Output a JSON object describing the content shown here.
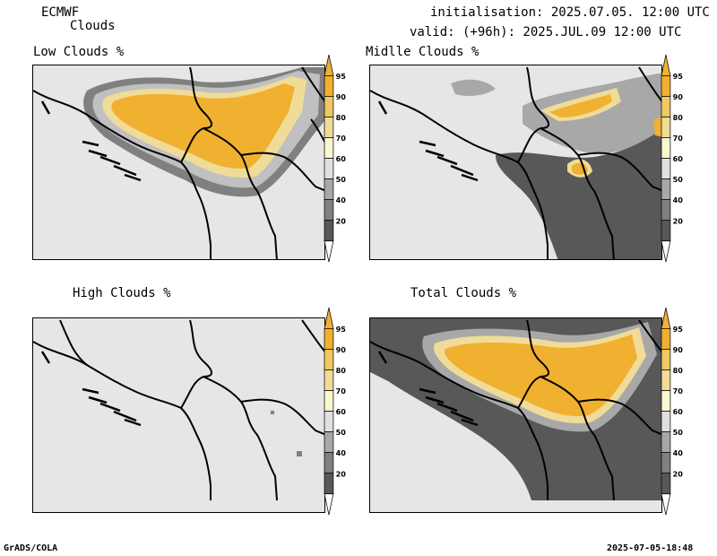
{
  "header": {
    "model": "ECMWF",
    "product": "Clouds",
    "init_line": "initialisation: 2025.07.05. 12:00 UTC",
    "valid_line": "valid: (+96h): 2025.JUL.09 12:00 UTC"
  },
  "panels": [
    {
      "title": "Low Clouds %"
    },
    {
      "title": "Midlle Clouds %"
    },
    {
      "title": "High Clouds %"
    },
    {
      "title": "Total Clouds %"
    }
  ],
  "colorbar": {
    "ticks": [
      "95",
      "90",
      "80",
      "70",
      "60",
      "50",
      "40",
      "20"
    ],
    "colors": [
      "#f0b030",
      "#f0c860",
      "#f0dc98",
      "#f8f8d0",
      "#e0e0e0",
      "#a8a8a8",
      "#808080",
      "#585858"
    ]
  },
  "footer": {
    "left": "GrADS/COLA",
    "right": "2025-07-05-18:48"
  }
}
